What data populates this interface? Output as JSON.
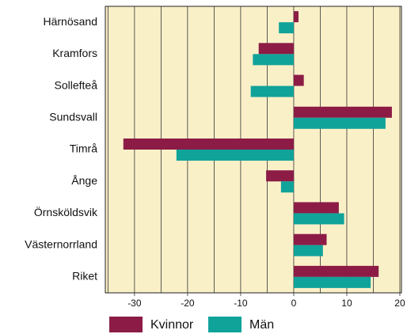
{
  "chart_data": {
    "type": "hbar",
    "categories": [
      "Härnösand",
      "Kramfors",
      "Sollefteå",
      "Sundsvall",
      "Timrå",
      "Ånge",
      "Örnsköldsvik",
      "Västernorrland",
      "Riket"
    ],
    "series": [
      {
        "name": "Kvinnor",
        "color": "#8c1c46",
        "values": [
          0.9,
          -6.6,
          1.9,
          18.5,
          -32.1,
          -5.2,
          8.5,
          6.2,
          16
        ]
      },
      {
        "name": "Män",
        "color": "#10a39a",
        "values": [
          -2.8,
          -7.7,
          -8.1,
          17.3,
          -22.1,
          -2.4,
          9.5,
          5.5,
          14.5
        ]
      }
    ],
    "xlim": [
      -35.5,
      20.3
    ],
    "xticks": [
      -30,
      -20,
      -10,
      0,
      10,
      20
    ],
    "minor_grid": [
      -35,
      -25,
      -15,
      -5,
      5,
      15
    ],
    "background": "#faf0c8",
    "legend": "bottom"
  }
}
